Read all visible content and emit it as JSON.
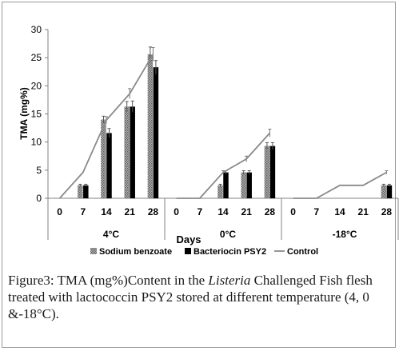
{
  "chart_data": {
    "type": "bar",
    "ylabel": "TMA (mg%)",
    "xlabel": "Days",
    "ylim": [
      0,
      30
    ],
    "yticks": [
      0,
      5,
      10,
      15,
      20,
      25,
      30
    ],
    "groups": [
      {
        "label": "4°C",
        "days": [
          "0",
          "7",
          "14",
          "21",
          "28"
        ]
      },
      {
        "label": "0°C",
        "days": [
          "0",
          "7",
          "14",
          "21",
          "28"
        ]
      },
      {
        "label": "-18°C",
        "days": [
          "0",
          "7",
          "14",
          "21",
          "28"
        ]
      }
    ],
    "series": [
      {
        "name": "Sodium benzoate",
        "kind": "bar",
        "color": "#8c8c8c",
        "values": [
          0,
          2.3,
          14.0,
          16.3,
          25.6,
          0,
          0,
          2.3,
          4.6,
          9.3,
          0,
          0,
          0,
          0,
          2.3
        ],
        "errors": [
          0,
          0.2,
          0.6,
          0.9,
          1.3,
          0,
          0,
          0.2,
          0.3,
          0.6,
          0,
          0,
          0,
          0,
          0.2
        ]
      },
      {
        "name": "Bacteriocin PSY2",
        "kind": "bar",
        "color": "#000000",
        "values": [
          0,
          2.3,
          11.6,
          16.3,
          23.3,
          0,
          0,
          4.6,
          4.6,
          9.3,
          0,
          0,
          0,
          0,
          2.3
        ],
        "errors": [
          0,
          0.2,
          0.8,
          1.0,
          1.2,
          0,
          0,
          0.3,
          0.3,
          0.6,
          0,
          0,
          0,
          0,
          0.2
        ]
      },
      {
        "name": "Control",
        "kind": "line",
        "color": "#8a8a8a",
        "values": [
          0,
          4.6,
          13.9,
          18.6,
          25.6,
          0,
          0,
          4.6,
          7.0,
          11.6,
          0,
          0,
          2.3,
          2.3,
          4.6
        ],
        "errors": [
          0,
          0,
          0.6,
          0.9,
          1.2,
          0,
          0,
          0.3,
          0.5,
          0.7,
          0,
          0,
          0,
          0,
          0.3
        ]
      }
    ],
    "legend": "bottom"
  },
  "caption": {
    "label": "Figure3:",
    "text_before_italic": " TMA (mg%)Content in the ",
    "italic": "Listeria",
    "text_after_italic": " Challenged Fish flesh treated with lactococcin PSY2 stored at different temperature (4, 0 &-18°C)."
  }
}
